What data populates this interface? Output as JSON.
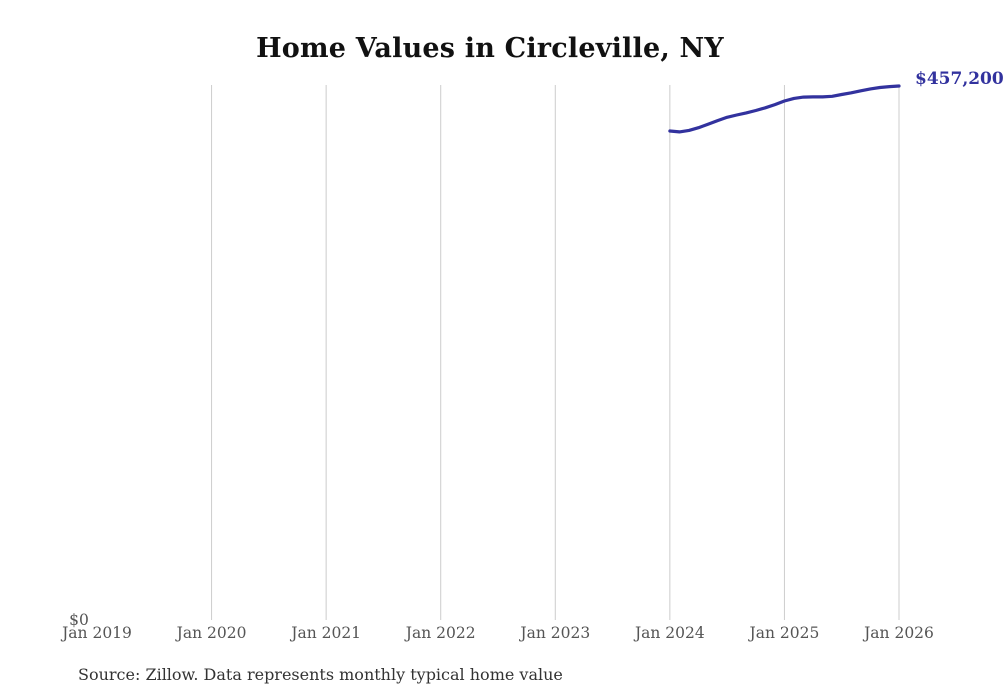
{
  "title": "Home Values in Circleville, NY",
  "source_note": "Source: Zillow. Data represents monthly typical home value",
  "end_value_label": "$457,200",
  "y_zero_label": "$0",
  "colors": {
    "line": "#32329e",
    "end_label_text": "#32329e",
    "gridline": "#cccccc",
    "axis_text": "#555555",
    "title_text": "#111111",
    "source_text": "#333333",
    "background": "#ffffff"
  },
  "chart_data": {
    "type": "line",
    "title": "Home Values in Circleville, NY",
    "x_axis": {
      "tick_labels": [
        "Jan 2019",
        "Jan 2020",
        "Jan 2021",
        "Jan 2022",
        "Jan 2023",
        "Jan 2024",
        "Jan 2025",
        "Jan 2026"
      ],
      "gridlines_at_ticks_from_index": 1,
      "range_months": [
        "2019-01",
        "2026-01"
      ]
    },
    "y_axis": {
      "min": 0,
      "min_label": "$0",
      "max_plotted_value": 457200,
      "other_ticks_shown": false
    },
    "grid": "vertical-only",
    "legend": "none",
    "series": [
      {
        "name": "Monthly typical home value",
        "end_label": "$457,200",
        "x": [
          "2024-01",
          "2024-02",
          "2024-03",
          "2024-04",
          "2024-05",
          "2024-06",
          "2024-07",
          "2024-08",
          "2024-09",
          "2024-10",
          "2024-11",
          "2024-12",
          "2025-01",
          "2025-02",
          "2025-03",
          "2025-04",
          "2025-05",
          "2025-06",
          "2025-07",
          "2025-08",
          "2025-09",
          "2025-10",
          "2025-11",
          "2025-12",
          "2026-01"
        ],
        "values": [
          418700,
          417900,
          419200,
          421500,
          424500,
          427600,
          430400,
          432400,
          434200,
          436200,
          438500,
          441300,
          444400,
          446600,
          447700,
          447900,
          447900,
          448400,
          449900,
          451400,
          453100,
          454700,
          455900,
          456700,
          457200
        ]
      }
    ]
  }
}
